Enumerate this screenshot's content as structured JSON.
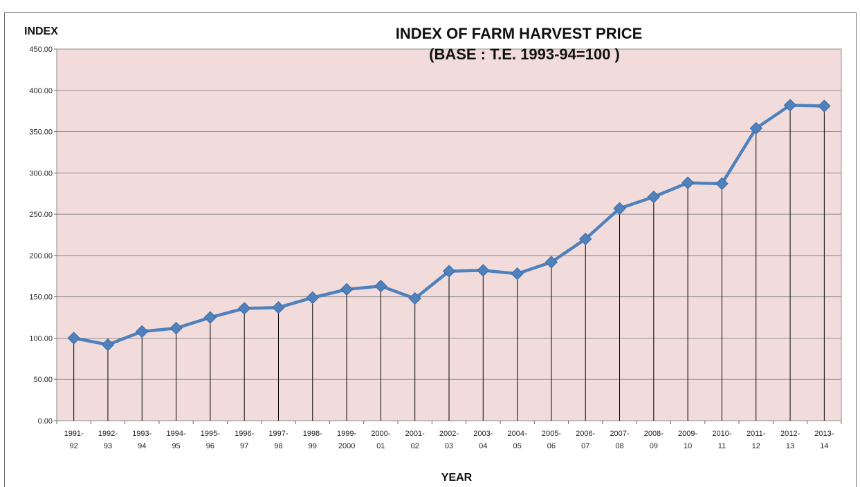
{
  "chart_data": {
    "type": "line",
    "title": "INDEX OF FARM HARVEST PRICE",
    "subtitle": "(BASE : T.E. 1993-94=100 )",
    "ylabel": "INDEX",
    "xlabel": "YEAR",
    "ylim": [
      0,
      450
    ],
    "y_ticks": [
      "0.00",
      "50.00",
      "100.00",
      "150.00",
      "200.00",
      "250.00",
      "300.00",
      "350.00",
      "400.00",
      "450.00"
    ],
    "categories": [
      [
        "1991-",
        "92"
      ],
      [
        "1992-",
        "93"
      ],
      [
        "1993-",
        "94"
      ],
      [
        "1994-",
        "95"
      ],
      [
        "1995-",
        "96"
      ],
      [
        "1996-",
        "97"
      ],
      [
        "1997-",
        "98"
      ],
      [
        "1998-",
        "99"
      ],
      [
        "1999-",
        "2000"
      ],
      [
        "2000-",
        "01"
      ],
      [
        "2001-",
        "02"
      ],
      [
        "2002-",
        "03"
      ],
      [
        "2003-",
        "04"
      ],
      [
        "2004-",
        "05"
      ],
      [
        "2005-",
        "06"
      ],
      [
        "2006-",
        "07"
      ],
      [
        "2007-",
        "08"
      ],
      [
        "2008-",
        "09"
      ],
      [
        "2009-",
        "10"
      ],
      [
        "2010-",
        "11"
      ],
      [
        "2011-",
        "12"
      ],
      [
        "2012-",
        "13"
      ],
      [
        "2013-",
        "14"
      ]
    ],
    "values": [
      100,
      92,
      108,
      112,
      125,
      136,
      137,
      149,
      159,
      163,
      148,
      181,
      182,
      178,
      192,
      220,
      257,
      271,
      288,
      287,
      354,
      382,
      381
    ],
    "grid": true,
    "drop_lines": true,
    "colors": {
      "plot_bg": "#f2dcdb",
      "line": "#4f81bd",
      "grid": "#8c8c8c"
    }
  }
}
